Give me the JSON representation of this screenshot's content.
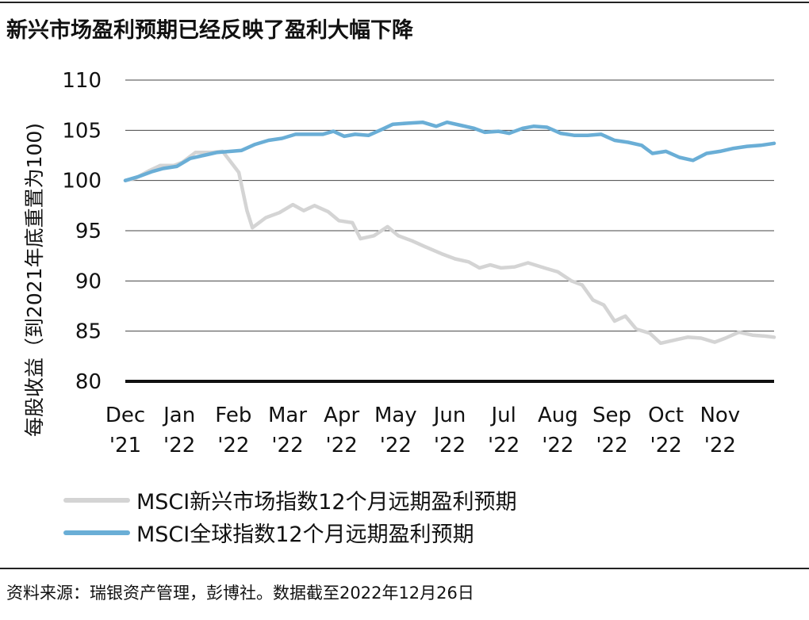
{
  "title": "新兴市场盈利预期已经反映了盈利大幅下降",
  "source": "资料来源：瑞银资产管理，彭博社。数据截至2022年12月26日",
  "chart_data": {
    "type": "line",
    "ylabel": "每股收益（到2021年底重置为100)",
    "ylim": [
      80,
      110
    ],
    "yticks": [
      80,
      85,
      90,
      95,
      100,
      105,
      110
    ],
    "x_range": [
      0,
      12
    ],
    "x_tick_labels": [
      {
        "pos": 0,
        "month": "Dec",
        "year": "'21"
      },
      {
        "pos": 1,
        "month": "Jan",
        "year": "'22"
      },
      {
        "pos": 2,
        "month": "Feb",
        "year": "'22"
      },
      {
        "pos": 3,
        "month": "Mar",
        "year": "'22"
      },
      {
        "pos": 4,
        "month": "Apr",
        "year": "'22"
      },
      {
        "pos": 5,
        "month": "May",
        "year": "'22"
      },
      {
        "pos": 6,
        "month": "Jun",
        "year": "'22"
      },
      {
        "pos": 7,
        "month": "Jul",
        "year": "'22"
      },
      {
        "pos": 8,
        "month": "Aug",
        "year": "'22"
      },
      {
        "pos": 9,
        "month": "Sep",
        "year": "'22"
      },
      {
        "pos": 10,
        "month": "Oct",
        "year": "'22"
      },
      {
        "pos": 11,
        "month": "Nov",
        "year": "'22"
      }
    ],
    "grid": true,
    "legend_position": "bottom-left",
    "series": [
      {
        "name": "MSCI新兴市场指数12个月远期盈利预期",
        "color": "#d4d4d4",
        "points": [
          [
            0,
            100
          ],
          [
            0.18,
            100.2
          ],
          [
            0.45,
            101
          ],
          [
            0.65,
            101.5
          ],
          [
            0.9,
            101.5
          ],
          [
            1.05,
            101.8
          ],
          [
            1.3,
            102.8
          ],
          [
            1.6,
            102.8
          ],
          [
            1.8,
            102.9
          ],
          [
            2.1,
            100.8
          ],
          [
            2.25,
            97
          ],
          [
            2.35,
            95.3
          ],
          [
            2.6,
            96.3
          ],
          [
            2.85,
            96.8
          ],
          [
            3.1,
            97.6
          ],
          [
            3.3,
            97
          ],
          [
            3.5,
            97.5
          ],
          [
            3.75,
            96.9
          ],
          [
            3.95,
            96
          ],
          [
            4.2,
            95.8
          ],
          [
            4.35,
            94.2
          ],
          [
            4.6,
            94.5
          ],
          [
            4.85,
            95.4
          ],
          [
            5.05,
            94.5
          ],
          [
            5.3,
            94
          ],
          [
            5.55,
            93.4
          ],
          [
            5.85,
            92.7
          ],
          [
            6.1,
            92.2
          ],
          [
            6.35,
            91.9
          ],
          [
            6.55,
            91.3
          ],
          [
            6.75,
            91.6
          ],
          [
            6.95,
            91.3
          ],
          [
            7.2,
            91.4
          ],
          [
            7.45,
            91.8
          ],
          [
            7.75,
            91.3
          ],
          [
            8.0,
            90.9
          ],
          [
            8.25,
            90
          ],
          [
            8.45,
            89.6
          ],
          [
            8.65,
            88.1
          ],
          [
            8.85,
            87.6
          ],
          [
            9.05,
            86
          ],
          [
            9.25,
            86.5
          ],
          [
            9.45,
            85.2
          ],
          [
            9.7,
            84.8
          ],
          [
            9.9,
            83.8
          ],
          [
            10.15,
            84.1
          ],
          [
            10.4,
            84.4
          ],
          [
            10.65,
            84.3
          ],
          [
            10.9,
            83.9
          ],
          [
            11.1,
            84.3
          ],
          [
            11.35,
            84.9
          ],
          [
            11.6,
            84.6
          ],
          [
            11.85,
            84.5
          ],
          [
            12.0,
            84.4
          ]
        ]
      },
      {
        "name": "MSCI全球指数12个月远期盈利预期",
        "color": "#6aaed6",
        "points": [
          [
            0,
            100
          ],
          [
            0.25,
            100.4
          ],
          [
            0.5,
            100.9
          ],
          [
            0.7,
            101.2
          ],
          [
            0.95,
            101.4
          ],
          [
            1.2,
            102.2
          ],
          [
            1.45,
            102.5
          ],
          [
            1.7,
            102.8
          ],
          [
            1.95,
            102.9
          ],
          [
            2.15,
            103
          ],
          [
            2.4,
            103.6
          ],
          [
            2.65,
            104
          ],
          [
            2.9,
            104.2
          ],
          [
            3.15,
            104.6
          ],
          [
            3.4,
            104.6
          ],
          [
            3.65,
            104.6
          ],
          [
            3.85,
            104.9
          ],
          [
            4.05,
            104.4
          ],
          [
            4.25,
            104.6
          ],
          [
            4.5,
            104.5
          ],
          [
            4.75,
            105.1
          ],
          [
            4.95,
            105.6
          ],
          [
            5.2,
            105.7
          ],
          [
            5.5,
            105.8
          ],
          [
            5.75,
            105.4
          ],
          [
            5.95,
            105.8
          ],
          [
            6.2,
            105.5
          ],
          [
            6.45,
            105.2
          ],
          [
            6.65,
            104.8
          ],
          [
            6.9,
            104.9
          ],
          [
            7.1,
            104.7
          ],
          [
            7.35,
            105.2
          ],
          [
            7.55,
            105.4
          ],
          [
            7.8,
            105.3
          ],
          [
            8.05,
            104.7
          ],
          [
            8.3,
            104.5
          ],
          [
            8.55,
            104.5
          ],
          [
            8.8,
            104.6
          ],
          [
            9.05,
            104
          ],
          [
            9.3,
            103.8
          ],
          [
            9.55,
            103.5
          ],
          [
            9.75,
            102.7
          ],
          [
            10.0,
            102.9
          ],
          [
            10.25,
            102.3
          ],
          [
            10.5,
            102
          ],
          [
            10.75,
            102.7
          ],
          [
            11.0,
            102.9
          ],
          [
            11.25,
            103.2
          ],
          [
            11.5,
            103.4
          ],
          [
            11.75,
            103.5
          ],
          [
            12.0,
            103.7
          ]
        ]
      }
    ]
  }
}
